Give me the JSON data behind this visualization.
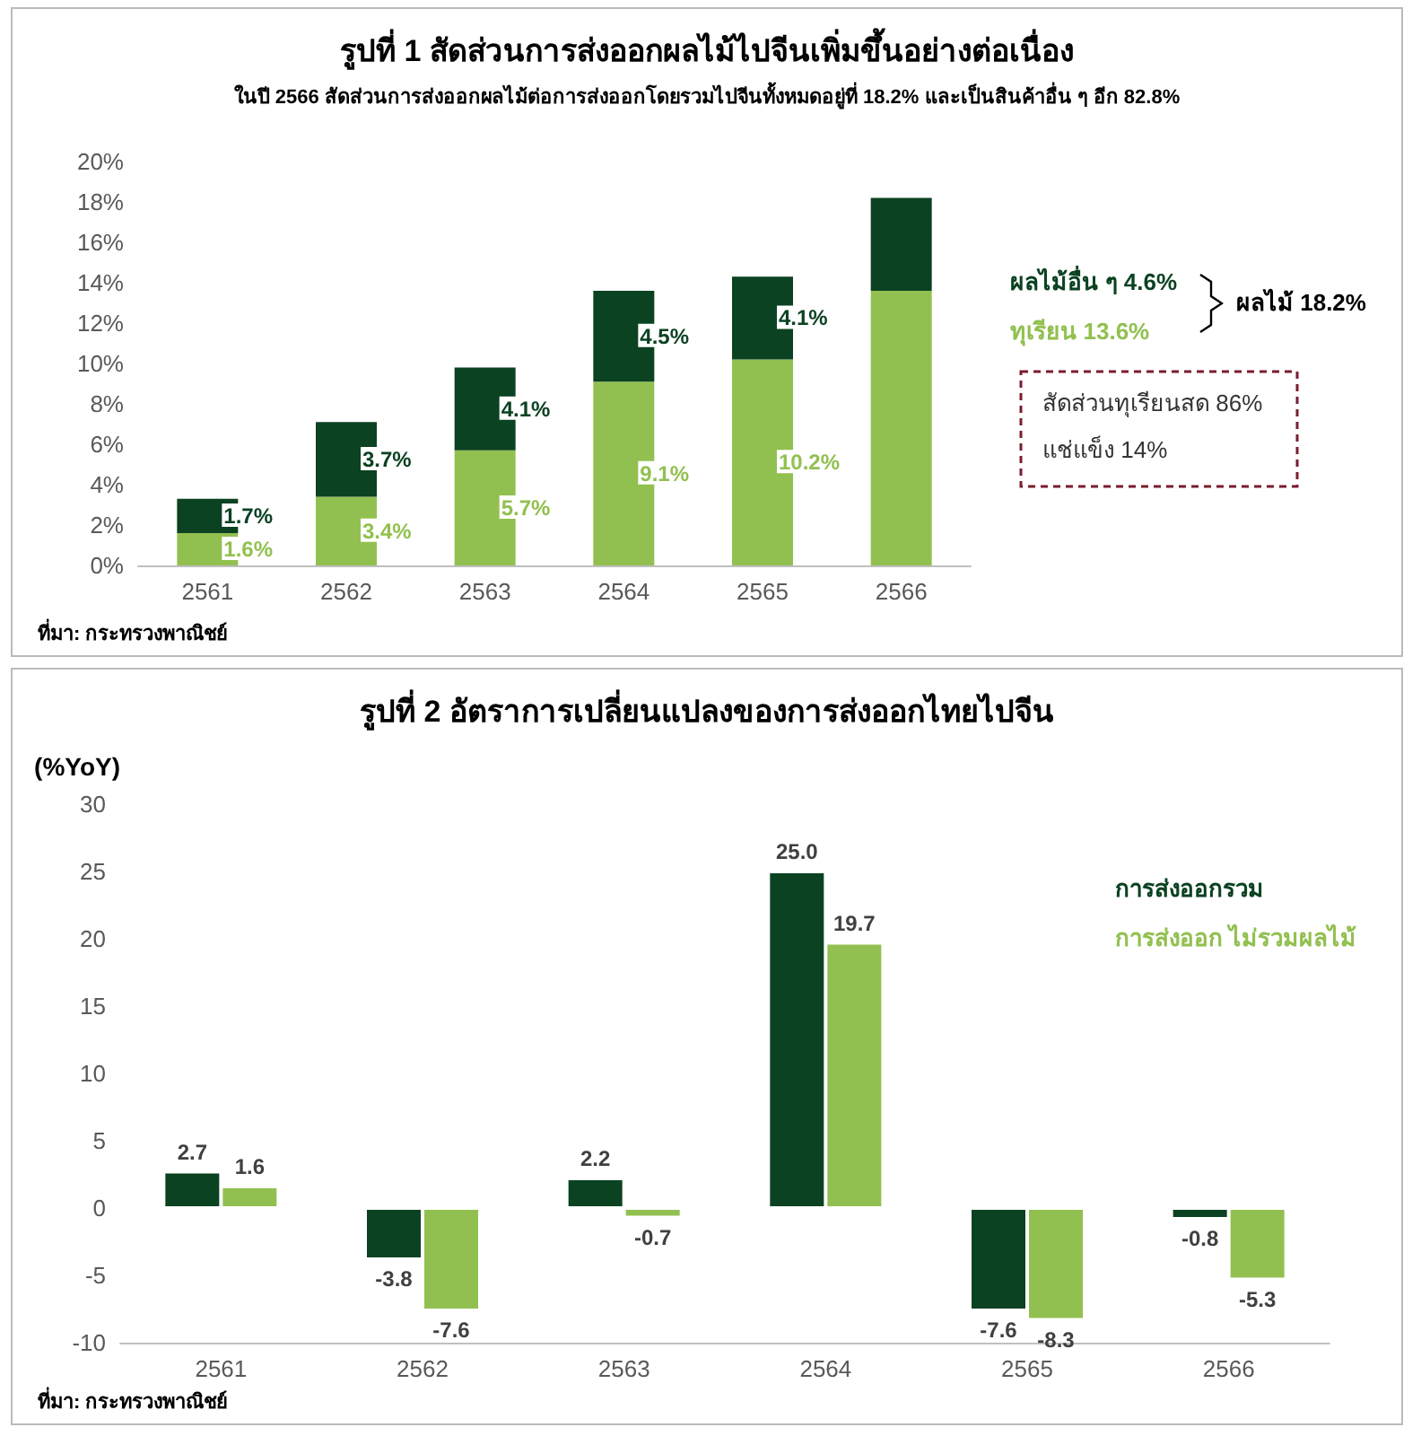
{
  "chart_data": [
    {
      "type": "bar",
      "title": "รูปที่ 1 สัดส่วนการส่งออกผลไม้ไปจีนเพิ่มขึ้นอย่างต่อเนื่อง",
      "subtitle": "ในปี 2566 สัดส่วนการส่งออกผลไม้ต่อการส่งออกโดยรวมไปจีนทั้งหมดอยู่ที่ 18.2% และเป็นสินค้าอื่น ๆ อีก 82.8%",
      "stacked": true,
      "grid": false,
      "legend": "right",
      "categories": [
        "2561",
        "2562",
        "2563",
        "2564",
        "2565",
        "2566"
      ],
      "series": [
        {
          "name": "ทุเรียน 13.6%",
          "color": "#92c050",
          "values": [
            1.6,
            3.4,
            5.7,
            9.1,
            10.2,
            13.6
          ],
          "value_labels": [
            "1.6%",
            "3.4%",
            "5.7%",
            "9.1%",
            "10.2%",
            null
          ]
        },
        {
          "name": "ผลไม้อื่น ๆ 4.6%",
          "color": "#0b4222",
          "values": [
            1.7,
            3.7,
            4.1,
            4.5,
            4.1,
            4.6
          ],
          "value_labels": [
            "1.7%",
            "3.7%",
            "4.1%",
            "4.5%",
            "4.1%",
            null
          ]
        }
      ],
      "ylim": [
        0,
        20
      ],
      "yticks": [
        {
          "value": 0,
          "label": "0%"
        },
        {
          "value": 2,
          "label": "2%"
        },
        {
          "value": 4,
          "label": "4%"
        },
        {
          "value": 6,
          "label": "6%"
        },
        {
          "value": 8,
          "label": "8%"
        },
        {
          "value": 10,
          "label": "10%"
        },
        {
          "value": 12,
          "label": "12%"
        },
        {
          "value": 14,
          "label": "14%"
        },
        {
          "value": 16,
          "label": "16%"
        },
        {
          "value": 18,
          "label": "18%"
        },
        {
          "value": 20,
          "label": "20%"
        }
      ],
      "annotations": [
        "ผลไม้ 18.2%",
        "สัดส่วนทุเรียนสด 86%",
        "แช่แข็ง 14%",
        "ที่มา: กระทรวงพาณิชย์"
      ]
    },
    {
      "type": "bar",
      "title": "รูปที่ 2 อัตราการเปลี่ยนแปลงของการส่งออกไทยไปจีน",
      "ylabel": "(%YoY)",
      "grid": false,
      "legend": "right",
      "categories": [
        "2561",
        "2562",
        "2563",
        "2564",
        "2565",
        "2566"
      ],
      "series": [
        {
          "name": "การส่งออกรวม",
          "color": "#0b4222",
          "values": [
            2.7,
            -3.8,
            2.2,
            25.0,
            -7.6,
            -0.8
          ],
          "value_labels": [
            "2.7",
            "-3.8",
            "2.2",
            "25.0",
            "-7.6",
            "-0.8"
          ]
        },
        {
          "name": "การส่งออก ไม่รวมผลไม้",
          "color": "#92c050",
          "values": [
            1.6,
            -7.6,
            -0.7,
            19.7,
            -8.3,
            -5.3
          ],
          "value_labels": [
            "1.6",
            "-7.6",
            "-0.7",
            "19.7",
            "-8.3",
            "-5.3"
          ]
        }
      ],
      "ylim": [
        -10,
        30
      ],
      "yticks": [
        -10,
        -5,
        0,
        5,
        10,
        15,
        20,
        25,
        30
      ],
      "annotations": [
        "ที่มา: กระทรวงพาณิชย์"
      ]
    }
  ]
}
